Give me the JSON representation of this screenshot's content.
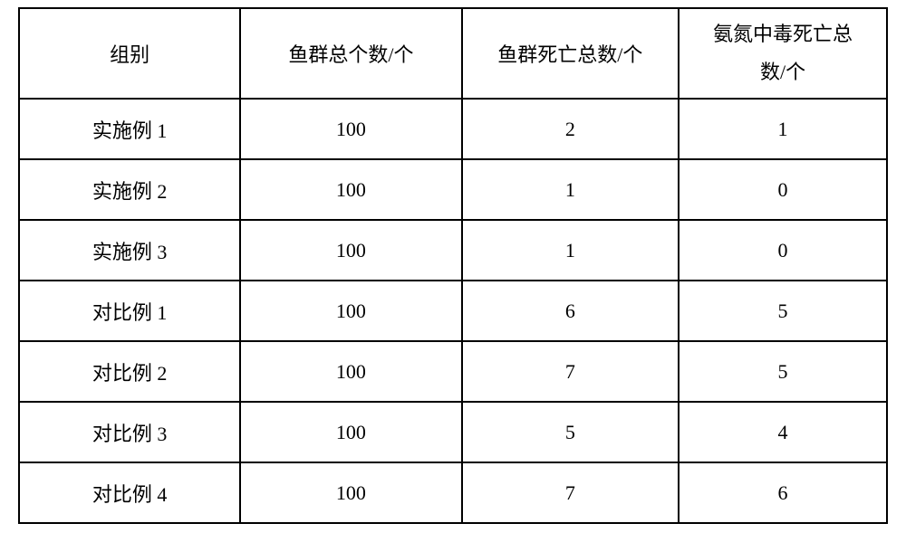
{
  "table": {
    "columns": [
      {
        "label": "组别"
      },
      {
        "label": "鱼群总个数/个"
      },
      {
        "label": "鱼群死亡总数/个"
      },
      {
        "label": "氨氮中毒死亡总\n数/个",
        "multiline": true
      }
    ],
    "rows": [
      {
        "group": "实施例 1",
        "total": "100",
        "deaths": "2",
        "ammonia_deaths": "1"
      },
      {
        "group": "实施例 2",
        "total": "100",
        "deaths": "1",
        "ammonia_deaths": "0"
      },
      {
        "group": "实施例 3",
        "total": "100",
        "deaths": "1",
        "ammonia_deaths": "0"
      },
      {
        "group": "对比例 1",
        "total": "100",
        "deaths": "6",
        "ammonia_deaths": "5"
      },
      {
        "group": "对比例 2",
        "total": "100",
        "deaths": "7",
        "ammonia_deaths": "5"
      },
      {
        "group": "对比例 3",
        "total": "100",
        "deaths": "5",
        "ammonia_deaths": "4"
      },
      {
        "group": "对比例 4",
        "total": "100",
        "deaths": "7",
        "ammonia_deaths": "6"
      }
    ],
    "style": {
      "border_color": "#000000",
      "border_width": 2,
      "background_color": "#ffffff",
      "text_color": "#000000",
      "font_size": 22,
      "font_family": "SimSun",
      "header_row_height": 100,
      "data_row_height": 67,
      "column_widths_pct": [
        25.5,
        25.5,
        25,
        24
      ]
    }
  }
}
